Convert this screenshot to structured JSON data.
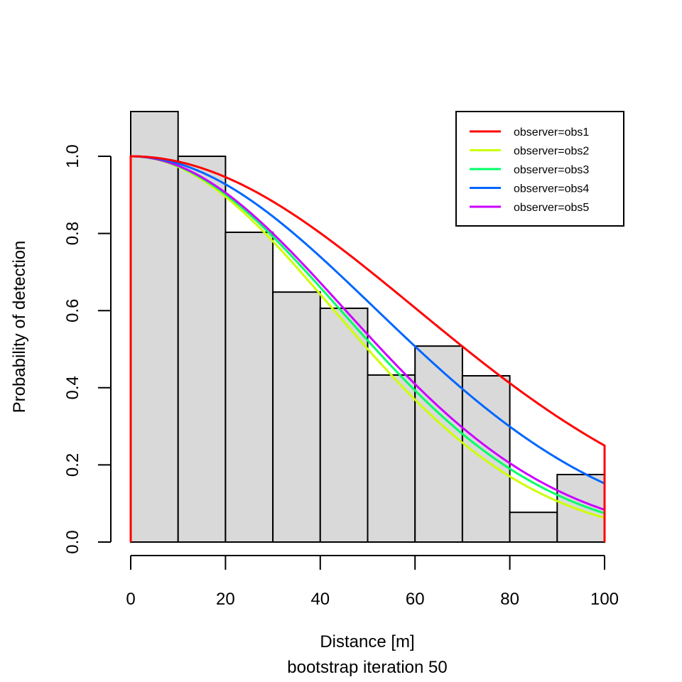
{
  "chart_data": {
    "type": "bar",
    "subtype": "histogram-with-detection-curves",
    "title": "",
    "xlabel": "Distance [m]",
    "sublabel": "bootstrap iteration 50",
    "ylabel": "Probability of detection",
    "xlim": [
      0,
      100
    ],
    "ylim": [
      0,
      1.0
    ],
    "x_ticks": [
      0,
      20,
      40,
      60,
      80,
      100
    ],
    "x_tick_labels": [
      "0",
      "20",
      "40",
      "60",
      "80",
      "100"
    ],
    "y_ticks": [
      0,
      0.2,
      0.4,
      0.6,
      0.8,
      1.0
    ],
    "y_tick_labels": [
      "0.0",
      "0.2",
      "0.4",
      "0.6",
      "0.8",
      "1.0"
    ],
    "grid": false,
    "histogram": {
      "bin_edges": [
        0,
        10,
        20,
        30,
        40,
        50,
        60,
        70,
        80,
        90,
        100
      ],
      "values": [
        1.116,
        1.0,
        0.803,
        0.648,
        0.606,
        0.433,
        0.508,
        0.431,
        0.077,
        0.175
      ],
      "fill": "#d9d9d9",
      "stroke": "#000000"
    },
    "legend": {
      "position": "top-right"
    },
    "series": [
      {
        "name": "observer=obs1",
        "color": "#ff0000",
        "model": "half-normal",
        "sigma": 60.06,
        "value_at_100": 0.25
      },
      {
        "name": "observer=obs2",
        "color": "#ccff00",
        "model": "half-normal",
        "sigma": 42.5,
        "value_at_100": 0.063
      },
      {
        "name": "observer=obs3",
        "color": "#00ff66",
        "model": "half-normal",
        "sigma": 43.9,
        "value_at_100": 0.072
      },
      {
        "name": "observer=obs4",
        "color": "#0066ff",
        "model": "half-normal",
        "sigma": 51.5,
        "value_at_100": 0.148
      },
      {
        "name": "observer=obs5",
        "color": "#cc00ff",
        "model": "half-normal",
        "sigma": 44.9,
        "value_at_100": 0.083
      }
    ]
  }
}
